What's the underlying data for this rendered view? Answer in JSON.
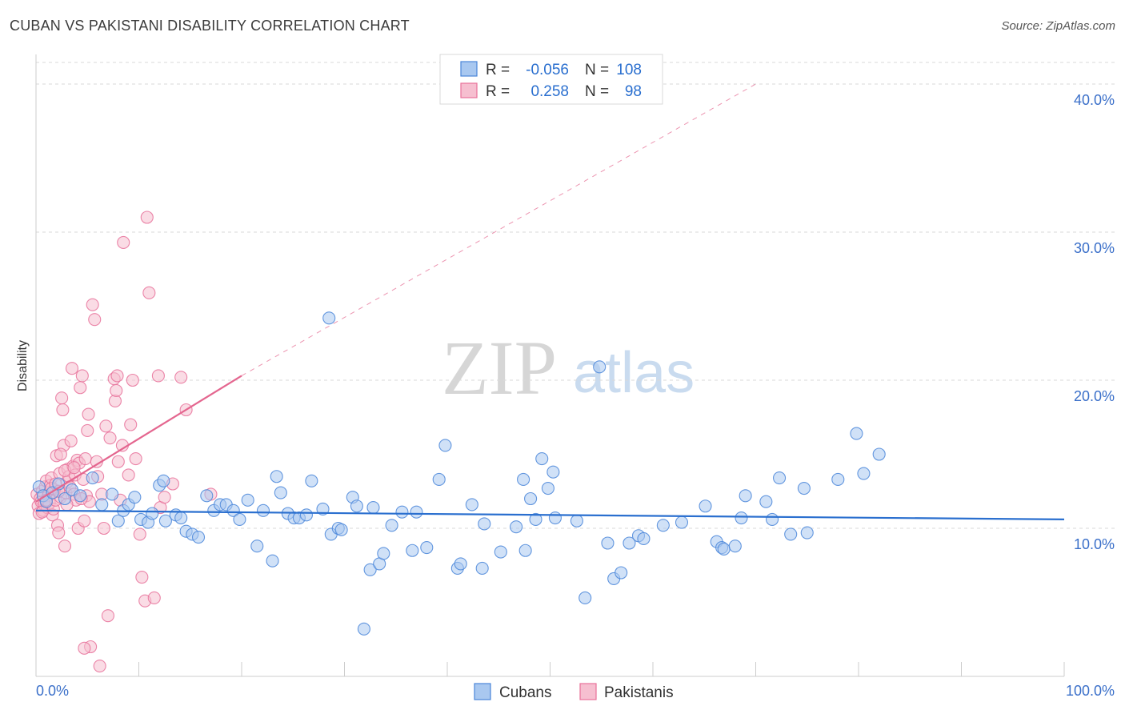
{
  "header": {
    "title": "CUBAN VS PAKISTANI DISABILITY CORRELATION CHART",
    "source": "Source: ZipAtlas.com"
  },
  "watermark": {
    "part1": "ZIP",
    "part2": "atlas"
  },
  "legend": {
    "rows": [
      {
        "r_label": "R =",
        "r_value": "-0.056",
        "n_label": "N =",
        "n_value": "108"
      },
      {
        "r_label": "R =",
        "r_value": "0.258",
        "n_label": "N =",
        "n_value": "98"
      }
    ]
  },
  "bottom_legend": {
    "series1": "Cubans",
    "series2": "Pakistanis"
  },
  "colors": {
    "cuban_fill": "#a9c8f0",
    "cuban_stroke": "#4a86d9",
    "cuban_line": "#2a6fcf",
    "pak_fill": "#f6bfd0",
    "pak_stroke": "#e8719a",
    "pak_line": "#e4668f",
    "tick_text": "#3a6fc9",
    "grid": "#d9d9d9"
  },
  "chart_data": {
    "type": "scatter",
    "title": "CUBAN VS PAKISTANI DISABILITY CORRELATION CHART",
    "xlabel": "",
    "ylabel": "Disability",
    "xlim": [
      0,
      100
    ],
    "ylim": [
      0,
      42
    ],
    "x_tick_labels": [
      "0.0%",
      "100.0%"
    ],
    "y_ticks": [
      10,
      20,
      30,
      40
    ],
    "y_tick_labels": [
      "10.0%",
      "20.0%",
      "30.0%",
      "40.0%"
    ],
    "series": [
      {
        "name": "Cubans",
        "r": -0.056,
        "n": 108,
        "trend": {
          "x": [
            0,
            100
          ],
          "y": [
            11.2,
            10.6
          ],
          "dashed_extension": false
        },
        "points": [
          [
            0.3,
            12.8
          ],
          [
            0.7,
            12.2
          ],
          [
            1.0,
            11.8
          ],
          [
            1.6,
            12.4
          ],
          [
            2.2,
            13.0
          ],
          [
            2.8,
            12.0
          ],
          [
            3.5,
            12.6
          ],
          [
            4.3,
            12.2
          ],
          [
            5.5,
            13.4
          ],
          [
            6.4,
            11.6
          ],
          [
            7.4,
            12.3
          ],
          [
            8.0,
            10.5
          ],
          [
            8.5,
            11.2
          ],
          [
            9.0,
            11.6
          ],
          [
            9.6,
            12.1
          ],
          [
            10.2,
            10.6
          ],
          [
            10.9,
            10.4
          ],
          [
            11.3,
            11.0
          ],
          [
            12.0,
            12.9
          ],
          [
            12.4,
            13.2
          ],
          [
            12.6,
            10.5
          ],
          [
            13.6,
            10.9
          ],
          [
            14.1,
            10.7
          ],
          [
            14.6,
            9.8
          ],
          [
            15.2,
            9.6
          ],
          [
            15.8,
            9.4
          ],
          [
            16.6,
            12.2
          ],
          [
            17.3,
            11.2
          ],
          [
            17.9,
            11.6
          ],
          [
            18.5,
            11.6
          ],
          [
            19.2,
            11.2
          ],
          [
            19.8,
            10.6
          ],
          [
            20.6,
            11.9
          ],
          [
            21.5,
            8.8
          ],
          [
            22.1,
            11.2
          ],
          [
            23.0,
            7.8
          ],
          [
            23.4,
            13.5
          ],
          [
            23.8,
            12.4
          ],
          [
            24.5,
            11.0
          ],
          [
            25.1,
            10.7
          ],
          [
            25.6,
            10.7
          ],
          [
            26.3,
            10.9
          ],
          [
            26.8,
            13.2
          ],
          [
            27.9,
            11.3
          ],
          [
            28.5,
            24.2
          ],
          [
            28.7,
            9.6
          ],
          [
            29.4,
            10.0
          ],
          [
            29.7,
            9.9
          ],
          [
            30.8,
            12.1
          ],
          [
            31.2,
            11.5
          ],
          [
            31.9,
            3.2
          ],
          [
            32.5,
            7.2
          ],
          [
            32.8,
            11.4
          ],
          [
            33.4,
            7.6
          ],
          [
            33.8,
            8.3
          ],
          [
            34.6,
            10.2
          ],
          [
            35.6,
            11.1
          ],
          [
            36.6,
            8.5
          ],
          [
            37.0,
            11.1
          ],
          [
            38.0,
            8.7
          ],
          [
            39.2,
            13.3
          ],
          [
            39.8,
            15.6
          ],
          [
            41.0,
            7.3
          ],
          [
            41.3,
            7.6
          ],
          [
            42.4,
            11.6
          ],
          [
            43.4,
            7.3
          ],
          [
            43.6,
            10.3
          ],
          [
            45.2,
            8.4
          ],
          [
            46.7,
            10.1
          ],
          [
            47.4,
            13.3
          ],
          [
            47.6,
            8.5
          ],
          [
            48.1,
            12.0
          ],
          [
            48.6,
            10.6
          ],
          [
            49.2,
            14.7
          ],
          [
            49.8,
            12.7
          ],
          [
            50.3,
            13.8
          ],
          [
            50.5,
            10.7
          ],
          [
            52.6,
            10.5
          ],
          [
            53.4,
            5.3
          ],
          [
            54.8,
            20.9
          ],
          [
            55.6,
            9.0
          ],
          [
            56.2,
            6.6
          ],
          [
            56.9,
            7.0
          ],
          [
            57.7,
            9.0
          ],
          [
            58.6,
            9.5
          ],
          [
            59.1,
            9.3
          ],
          [
            61.0,
            10.2
          ],
          [
            62.8,
            10.4
          ],
          [
            65.1,
            11.5
          ],
          [
            66.2,
            9.1
          ],
          [
            66.7,
            8.7
          ],
          [
            66.9,
            8.6
          ],
          [
            68.0,
            8.8
          ],
          [
            68.6,
            10.7
          ],
          [
            69.0,
            12.2
          ],
          [
            71.0,
            11.8
          ],
          [
            71.6,
            10.6
          ],
          [
            72.3,
            13.4
          ],
          [
            73.4,
            9.6
          ],
          [
            74.7,
            12.7
          ],
          [
            75.0,
            9.7
          ],
          [
            78.0,
            13.3
          ],
          [
            79.8,
            16.4
          ],
          [
            80.5,
            13.7
          ],
          [
            82.0,
            15.0
          ]
        ]
      },
      {
        "name": "Pakistanis",
        "r": 0.258,
        "n": 98,
        "trend": {
          "x": [
            0,
            20,
            70
          ],
          "y": [
            11.8,
            20.3,
            40.0
          ],
          "dashed_extension": true,
          "solid_until_x": 20
        },
        "points": [
          [
            0.1,
            12.3
          ],
          [
            0.2,
            11.5
          ],
          [
            0.3,
            11.0
          ],
          [
            0.4,
            12.0
          ],
          [
            0.5,
            11.8
          ],
          [
            0.6,
            12.5
          ],
          [
            0.7,
            11.2
          ],
          [
            0.8,
            11.6
          ],
          [
            0.9,
            12.8
          ],
          [
            1.0,
            13.2
          ],
          [
            1.1,
            11.4
          ],
          [
            1.2,
            12.2
          ],
          [
            1.3,
            11.7
          ],
          [
            1.4,
            12.9
          ],
          [
            1.5,
            13.4
          ],
          [
            1.6,
            10.9
          ],
          [
            1.7,
            11.3
          ],
          [
            1.8,
            12.6
          ],
          [
            1.9,
            11.9
          ],
          [
            2.0,
            14.9
          ],
          [
            2.1,
            10.2
          ],
          [
            2.2,
            9.7
          ],
          [
            2.3,
            13.7
          ],
          [
            2.4,
            12.1
          ],
          [
            2.5,
            18.8
          ],
          [
            2.6,
            18.0
          ],
          [
            2.7,
            15.6
          ],
          [
            2.8,
            8.8
          ],
          [
            2.9,
            12.4
          ],
          [
            3.0,
            13.1
          ],
          [
            3.1,
            14.0
          ],
          [
            3.2,
            13.5
          ],
          [
            3.3,
            12.8
          ],
          [
            3.4,
            15.9
          ],
          [
            3.5,
            20.8
          ],
          [
            3.6,
            14.2
          ],
          [
            3.7,
            12.3
          ],
          [
            3.8,
            13.6
          ],
          [
            3.9,
            11.9
          ],
          [
            4.0,
            14.6
          ],
          [
            4.1,
            10.0
          ],
          [
            4.2,
            14.4
          ],
          [
            4.3,
            19.5
          ],
          [
            4.5,
            20.3
          ],
          [
            4.6,
            13.3
          ],
          [
            4.7,
            10.5
          ],
          [
            4.8,
            14.7
          ],
          [
            4.9,
            12.2
          ],
          [
            5.0,
            16.6
          ],
          [
            5.1,
            17.7
          ],
          [
            5.2,
            11.8
          ],
          [
            5.3,
            2.0
          ],
          [
            4.7,
            1.9
          ],
          [
            5.5,
            25.1
          ],
          [
            5.7,
            24.1
          ],
          [
            5.9,
            14.5
          ],
          [
            6.0,
            13.5
          ],
          [
            6.2,
            0.7
          ],
          [
            6.4,
            12.3
          ],
          [
            6.6,
            10.0
          ],
          [
            6.8,
            16.9
          ],
          [
            7.0,
            4.1
          ],
          [
            7.2,
            16.1
          ],
          [
            7.6,
            20.1
          ],
          [
            7.7,
            18.6
          ],
          [
            7.8,
            19.3
          ],
          [
            7.9,
            20.3
          ],
          [
            8.0,
            14.5
          ],
          [
            8.2,
            11.9
          ],
          [
            8.4,
            15.6
          ],
          [
            8.5,
            29.3
          ],
          [
            9.0,
            13.6
          ],
          [
            9.2,
            17.0
          ],
          [
            9.4,
            20.0
          ],
          [
            9.7,
            14.7
          ],
          [
            10.1,
            9.6
          ],
          [
            10.3,
            6.7
          ],
          [
            10.6,
            5.1
          ],
          [
            10.8,
            31.0
          ],
          [
            11.0,
            25.9
          ],
          [
            11.5,
            5.3
          ],
          [
            11.9,
            20.3
          ],
          [
            12.1,
            11.4
          ],
          [
            12.5,
            12.1
          ],
          [
            13.3,
            13.0
          ],
          [
            14.1,
            20.2
          ],
          [
            14.6,
            18.0
          ],
          [
            17.0,
            12.3
          ],
          [
            1.0,
            11.9
          ],
          [
            1.5,
            12.7
          ],
          [
            0.6,
            11.1
          ],
          [
            2.8,
            13.9
          ],
          [
            3.0,
            11.6
          ],
          [
            2.4,
            15.0
          ],
          [
            1.9,
            13.0
          ],
          [
            3.7,
            14.1
          ],
          [
            4.4,
            12.0
          ],
          [
            2.2,
            12.5
          ]
        ]
      }
    ]
  }
}
